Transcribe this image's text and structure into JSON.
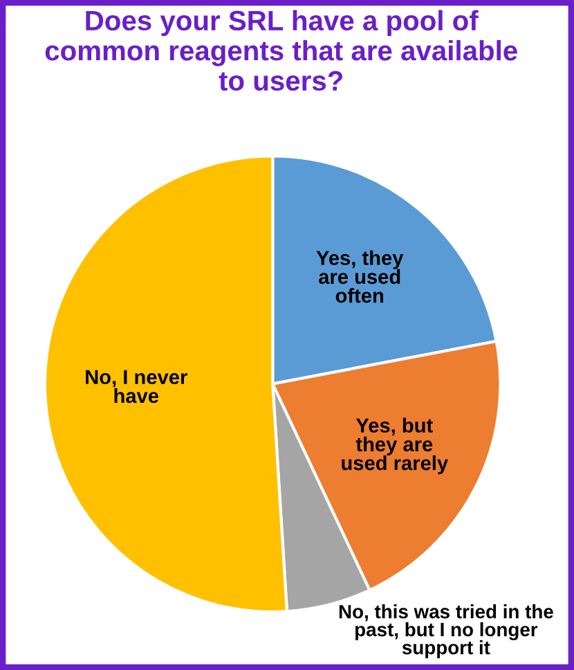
{
  "chart_data": {
    "type": "pie",
    "title": "Does your SRL have a pool of\ncommon reagents that are available\nto users?",
    "categories": [
      "Yes, they\nare used\noften",
      "Yes, but\nthey are\nused rarely",
      "No, this was tried in the\npast, but I no longer\nsupport it",
      "No, I never\nhave"
    ],
    "values": [
      22,
      21,
      6,
      51
    ],
    "colors": [
      "#5b9bd5",
      "#ed7d31",
      "#a5a5a5",
      "#ffc000"
    ],
    "legend": false
  }
}
